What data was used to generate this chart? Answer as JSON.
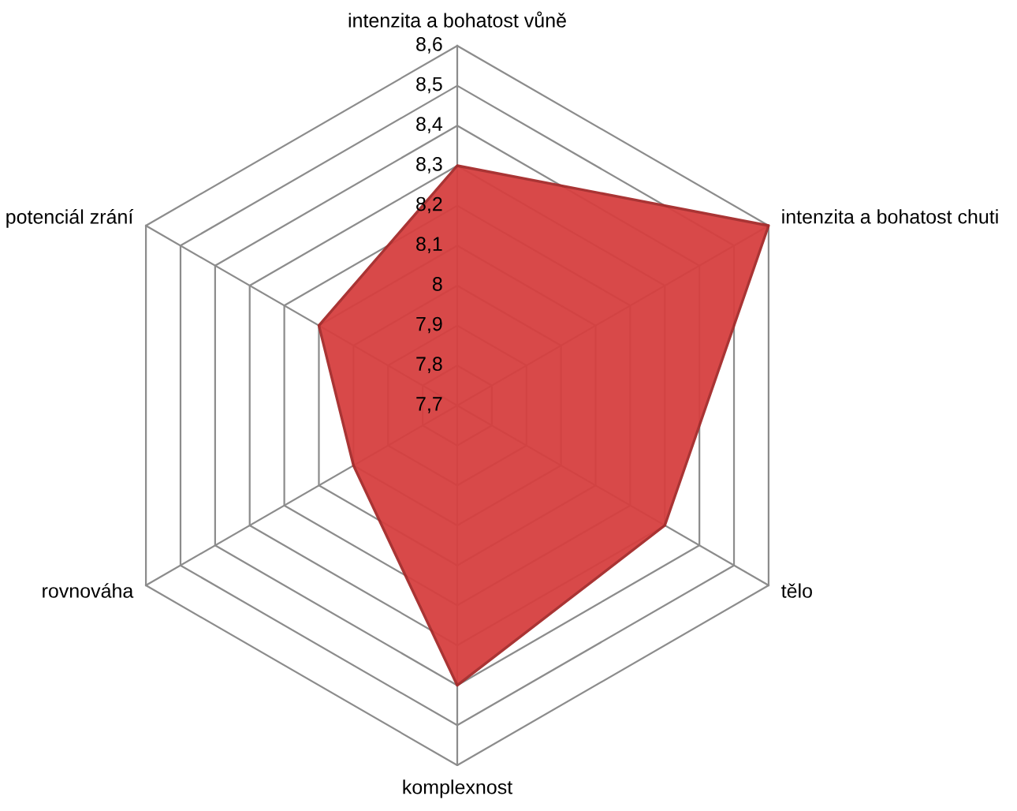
{
  "chart_data": {
    "type": "radar",
    "categories": [
      "intenzita a bohatost vůně",
      "intenzita a bohatost chuti",
      "tělo",
      "komplexnost",
      "rovnováha",
      "potenciál zrání"
    ],
    "series": [
      {
        "color": "#d64040",
        "values": [
          8.3,
          8.6,
          8.3,
          8.4,
          8.0,
          8.1
        ]
      }
    ],
    "ylim": [
      7.7,
      8.6
    ],
    "yticks": [
      {
        "value": 7.7,
        "label": "7,7"
      },
      {
        "value": 7.8,
        "label": "7,8"
      },
      {
        "value": 7.9,
        "label": "7,9"
      },
      8,
      {
        "value": 8.1,
        "label": "8,1"
      },
      {
        "value": 8.2,
        "label": "8,2"
      },
      {
        "value": 8.3,
        "label": "8,3"
      },
      {
        "value": 8.4,
        "label": "8,4"
      },
      {
        "value": 8.5,
        "label": "8,5"
      },
      {
        "value": 8.6,
        "label": "8,6"
      }
    ],
    "grid": true
  }
}
